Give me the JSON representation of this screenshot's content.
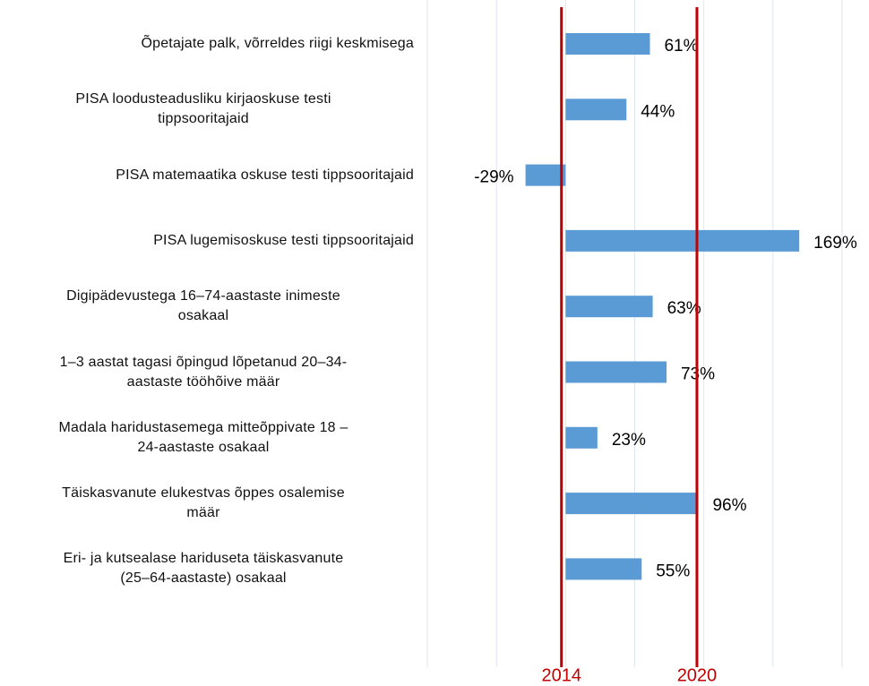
{
  "chart_data": {
    "type": "barh",
    "categories": [
      "Õpetajate palk, võrreldes riigi keskmisega",
      "PISA loodusteadusliku kirjaoskuse testi\ntippsooritajaid",
      "PISA matemaatika oskuse testi tippsooritajaid",
      "PISA lugemisoskuse testi tippsooritajaid",
      "Digipädevustega  16–74-aastaste inimeste\nosakaal",
      "1–3 aastat tagasi õpingud lõpetanud 20–34-\naastaste tööhõive määr",
      "Madala haridustasemega mitteõppivate 18 –\n24-aastaste osakaal",
      "Täiskasvanute elukestvas õppes osalemise\nmäär",
      "Eri- ja kutsealase hariduseta täiskasvanute\n(25–64-aastaste) osakaal"
    ],
    "values": [
      61,
      44,
      -29,
      169,
      63,
      73,
      23,
      96,
      55
    ],
    "value_labels": [
      "61%",
      "44%",
      "-29%",
      "169%",
      "63%",
      "73%",
      "23%",
      "96%",
      "55%"
    ],
    "color": "#5b9bd5",
    "xlim": [
      -100,
      200
    ],
    "xticks": [
      -100,
      -50,
      0,
      50,
      100,
      150,
      200
    ],
    "grid": true,
    "reference_lines": [
      {
        "value": -3,
        "label": "2014",
        "color": "#c00000"
      },
      {
        "value": 95,
        "label": "2020",
        "color": "#c00000"
      }
    ]
  }
}
